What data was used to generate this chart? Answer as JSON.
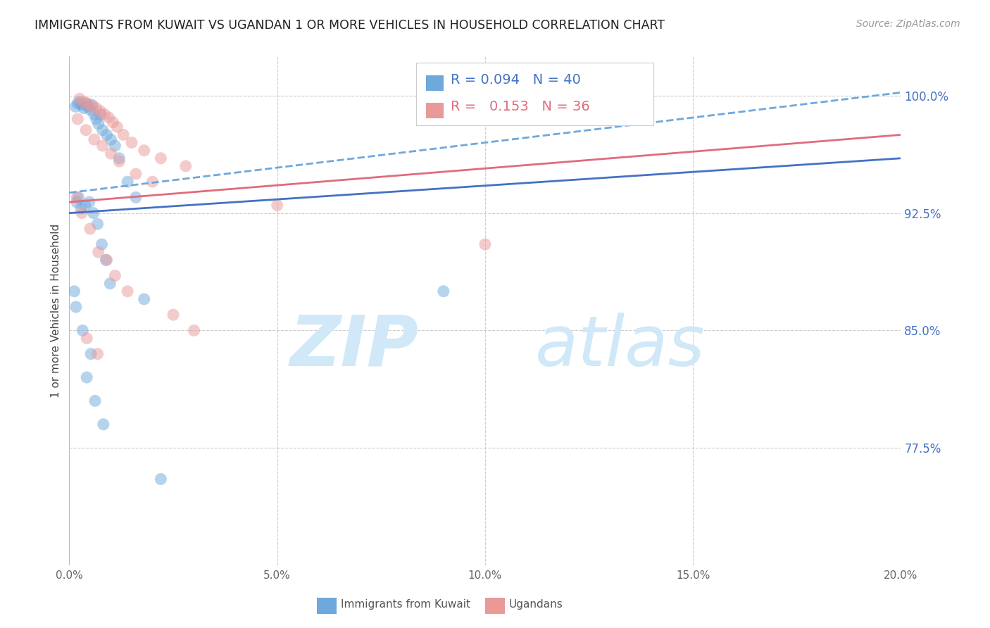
{
  "title": "IMMIGRANTS FROM KUWAIT VS UGANDAN 1 OR MORE VEHICLES IN HOUSEHOLD CORRELATION CHART",
  "source_text": "Source: ZipAtlas.com",
  "ylabel": "1 or more Vehicles in Household",
  "xlabel_ticks": [
    "0.0%",
    "5.0%",
    "10.0%",
    "15.0%",
    "20.0%"
  ],
  "xlabel_vals": [
    0.0,
    5.0,
    10.0,
    15.0,
    20.0
  ],
  "ylabel_ticks": [
    "77.5%",
    "85.0%",
    "92.5%",
    "100.0%"
  ],
  "ylabel_vals": [
    77.5,
    85.0,
    92.5,
    100.0
  ],
  "xlim": [
    0.0,
    20.0
  ],
  "ylim": [
    70.0,
    102.5
  ],
  "legend_blue_r": "0.094",
  "legend_blue_n": "40",
  "legend_pink_r": "0.153",
  "legend_pink_n": "36",
  "legend_label_blue": "Immigrants from Kuwait",
  "legend_label_pink": "Ugandans",
  "blue_color": "#6fa8dc",
  "pink_color": "#ea9999",
  "trend_blue_color": "#4472c4",
  "trend_pink_color": "#e06c7c",
  "trend_dashed_color": "#6fa8dc",
  "watermark_zip": "ZIP",
  "watermark_atlas": "atlas",
  "watermark_color": "#d0e8f8",
  "blue_x": [
    0.15,
    0.2,
    0.25,
    0.3,
    0.35,
    0.4,
    0.45,
    0.5,
    0.55,
    0.6,
    0.65,
    0.7,
    0.75,
    0.8,
    0.9,
    1.0,
    1.1,
    1.2,
    1.4,
    1.6,
    0.18,
    0.22,
    0.28,
    0.38,
    0.48,
    0.58,
    0.68,
    0.78,
    0.88,
    0.98,
    0.12,
    0.16,
    0.32,
    0.52,
    1.8,
    9.0,
    0.42,
    0.62,
    0.82,
    2.2
  ],
  "blue_y": [
    99.3,
    99.5,
    99.6,
    99.4,
    99.2,
    99.5,
    99.3,
    99.1,
    99.4,
    98.8,
    98.5,
    98.2,
    98.8,
    97.8,
    97.5,
    97.2,
    96.8,
    96.0,
    94.5,
    93.5,
    93.2,
    93.5,
    92.8,
    93.0,
    93.2,
    92.5,
    91.8,
    90.5,
    89.5,
    88.0,
    87.5,
    86.5,
    85.0,
    83.5,
    87.0,
    87.5,
    82.0,
    80.5,
    79.0,
    75.5
  ],
  "pink_x": [
    0.25,
    0.35,
    0.45,
    0.55,
    0.65,
    0.75,
    0.85,
    0.95,
    1.05,
    1.15,
    1.3,
    1.5,
    1.8,
    2.2,
    2.8,
    0.2,
    0.4,
    0.6,
    0.8,
    1.0,
    1.2,
    1.6,
    2.0,
    5.0,
    10.0,
    0.18,
    0.3,
    0.5,
    0.7,
    0.9,
    1.1,
    1.4,
    2.5,
    3.0,
    0.42,
    0.68
  ],
  "pink_y": [
    99.8,
    99.6,
    99.5,
    99.3,
    99.2,
    99.0,
    98.8,
    98.6,
    98.3,
    98.0,
    97.5,
    97.0,
    96.5,
    96.0,
    95.5,
    98.5,
    97.8,
    97.2,
    96.8,
    96.3,
    95.8,
    95.0,
    94.5,
    93.0,
    90.5,
    93.5,
    92.5,
    91.5,
    90.0,
    89.5,
    88.5,
    87.5,
    86.0,
    85.0,
    84.5,
    83.5
  ]
}
